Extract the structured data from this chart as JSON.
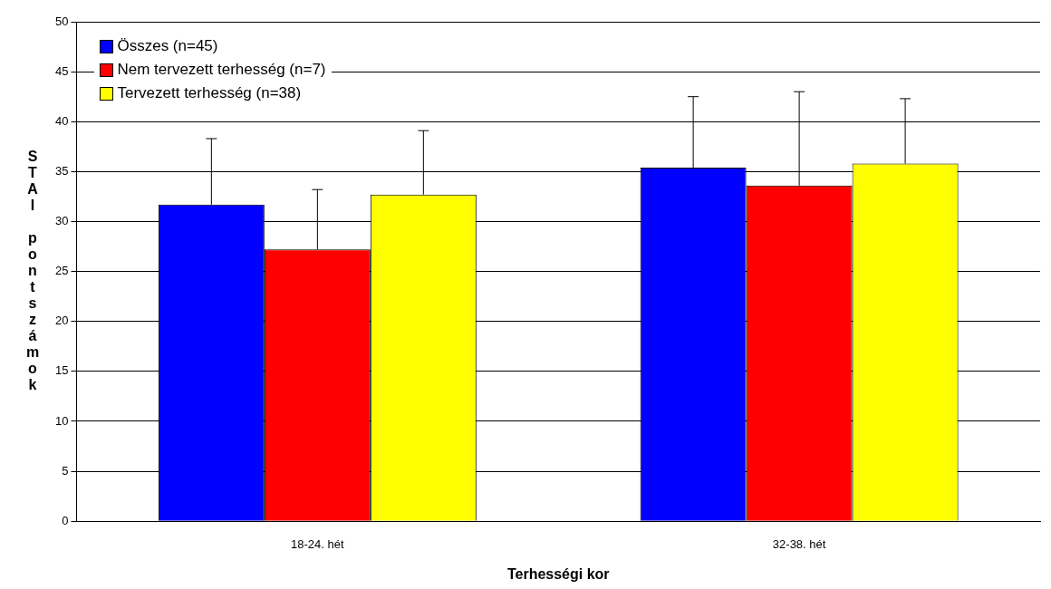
{
  "chart_data": {
    "type": "bar",
    "xlabel": "Terhességi kor",
    "ylabel": "STAI pontszámok",
    "categories": [
      "18-24. hét",
      "32-38. hét"
    ],
    "series": [
      {
        "name": "Összes (n=45)",
        "color": "#0000ff",
        "values": [
          31.7,
          35.4
        ],
        "errors": [
          [
            31.7,
            38.3
          ],
          [
            35.4,
            42.5
          ]
        ]
      },
      {
        "name": "Nem tervezett terhesség (n=7)",
        "color": "#ff0000",
        "values": [
          27.2,
          33.6
        ],
        "errors": [
          [
            27.2,
            33.2
          ],
          [
            33.6,
            43.0
          ]
        ]
      },
      {
        "name": "Tervezett terhesség (n=38)",
        "color": "#ffff00",
        "values": [
          32.7,
          35.8
        ],
        "errors": [
          [
            32.7,
            39.1
          ],
          [
            35.8,
            42.3
          ]
        ]
      }
    ],
    "ylim": [
      0,
      50
    ],
    "yticks": [
      0,
      5,
      10,
      15,
      20,
      25,
      30,
      35,
      40,
      45,
      50
    ],
    "grid": "y",
    "legend": "top left"
  }
}
